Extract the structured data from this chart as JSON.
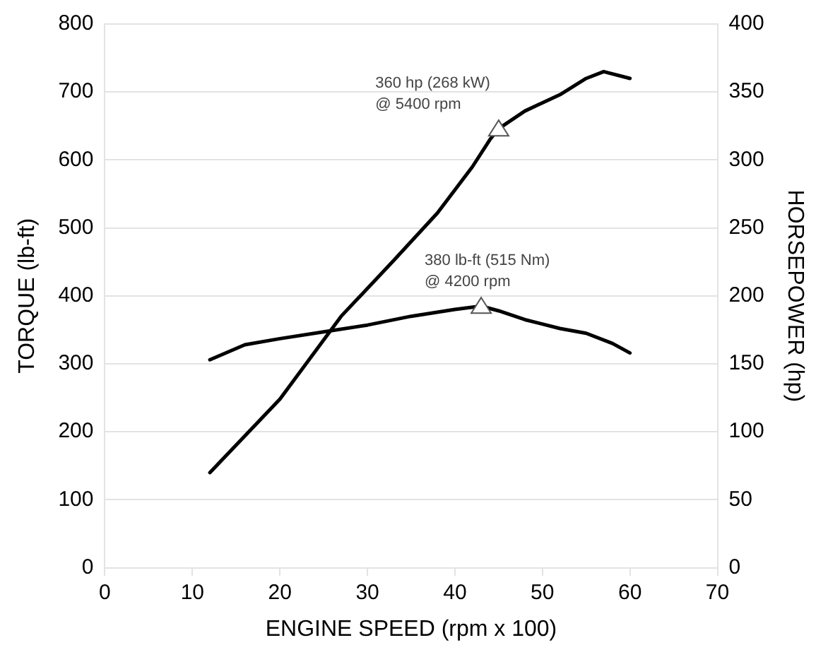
{
  "chart_data": {
    "type": "line",
    "xlabel": "ENGINE SPEED (rpm x 100)",
    "ylabel": "TORQUE (lb-ft)",
    "y2label": "HORSEPOWER (hp)",
    "xlim": [
      0,
      70
    ],
    "xticks": [
      0,
      10,
      20,
      30,
      40,
      50,
      60,
      70
    ],
    "ylim": [
      0,
      800
    ],
    "yticks": [
      0,
      100,
      200,
      300,
      400,
      500,
      600,
      700,
      800
    ],
    "y2lim": [
      0,
      400
    ],
    "y2ticks": [
      0,
      50,
      100,
      150,
      200,
      250,
      300,
      350,
      400
    ],
    "grid": "y",
    "marker": "none",
    "line_style": "solid",
    "series": [
      {
        "color": "#000000",
        "x": [
          12,
          16,
          20,
          25,
          30,
          35,
          40,
          43,
          45,
          48,
          52,
          55,
          58,
          60
        ],
        "values": [
          306,
          328,
          337,
          347,
          357,
          370,
          380,
          385,
          378,
          365,
          352,
          345,
          330,
          316
        ]
      },
      {
        "color": "#000000",
        "axis": "y2",
        "x": [
          12,
          20,
          27,
          33,
          38,
          42,
          44,
          45,
          48,
          52,
          55,
          57,
          60
        ],
        "values": [
          70,
          124,
          185,
          226,
          261,
          295,
          315,
          323,
          336,
          348,
          360,
          365,
          360
        ]
      }
    ],
    "annotations": [
      {
        "text": "360 hp (268 kW)\n@ 5400 rpm",
        "x": 45,
        "y": 646
      },
      {
        "text": "380 lb-ft (515 Nm)\n@ 4200 rpm",
        "x": 43,
        "y": 385
      }
    ]
  }
}
